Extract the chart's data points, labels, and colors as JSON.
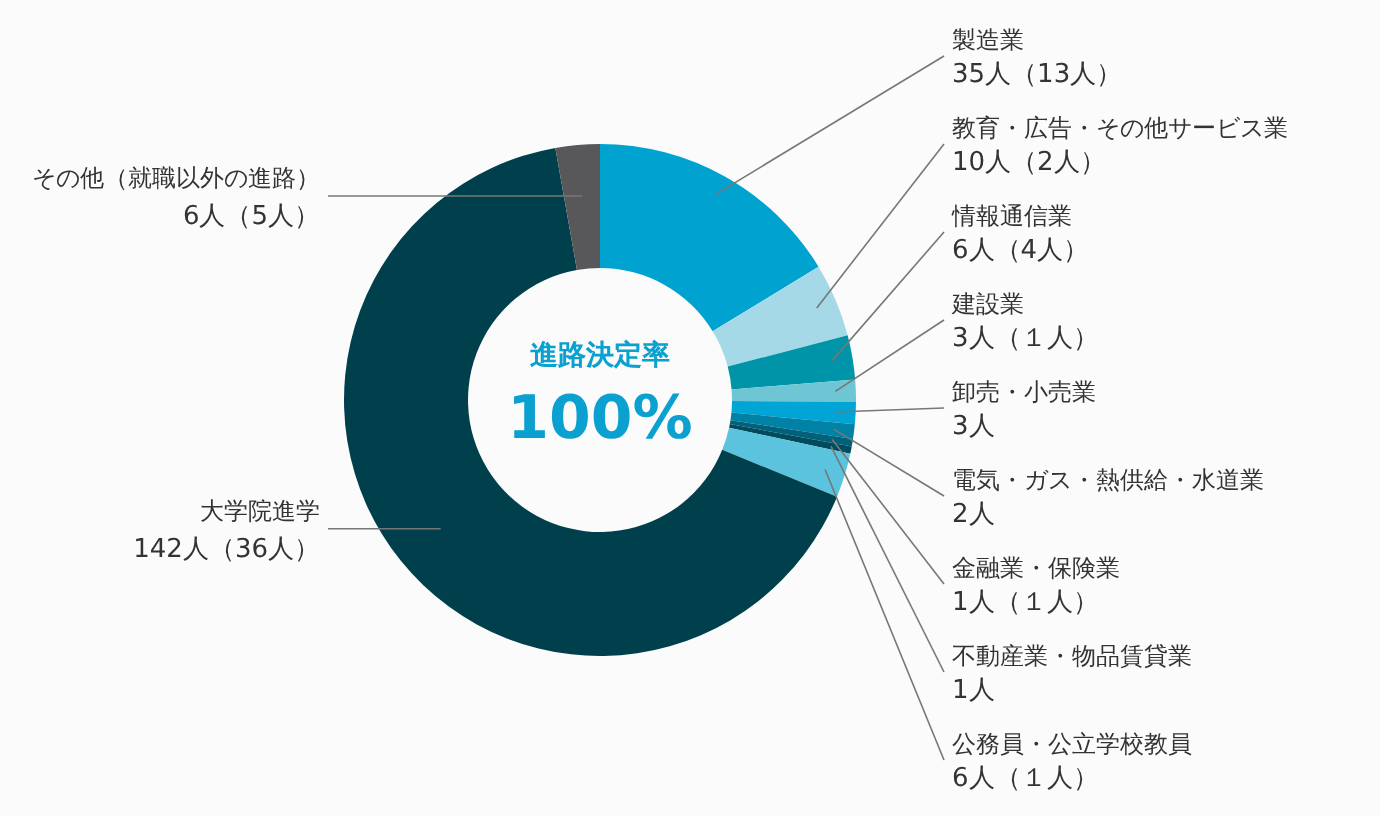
{
  "chart_data": {
    "type": "donut",
    "categories": [
      "製造業",
      "教育・広告・その他サービス業",
      "情報通信業",
      "建設業",
      "卸売・小売業",
      "電気・ガス・熱供給・水道業",
      "金融業・保険業",
      "不動産業・物品賃貸業",
      "公務員・公立学校教員",
      "大学院進学",
      "その他（就職以外の進路）"
    ],
    "values": [
      35,
      10,
      6,
      3,
      3,
      2,
      1,
      1,
      6,
      142,
      6
    ],
    "value_labels": [
      "35人（13人）",
      "10人（2人）",
      "6人（4人）",
      "3人（１人）",
      "3人",
      "2人",
      "1人（１人）",
      "1人",
      "6人（１人）",
      "142人（36人）",
      "6人（5人）"
    ],
    "colors": [
      "#00a3d0",
      "#a5d9e8",
      "#0094a8",
      "#6ec6d4",
      "#00a5d6",
      "#0082a6",
      "#00617a",
      "#004c5e",
      "#5cc3df",
      "#00404d",
      "#58585a"
    ],
    "annotations": [
      "進路決定率",
      "100%"
    ]
  }
}
